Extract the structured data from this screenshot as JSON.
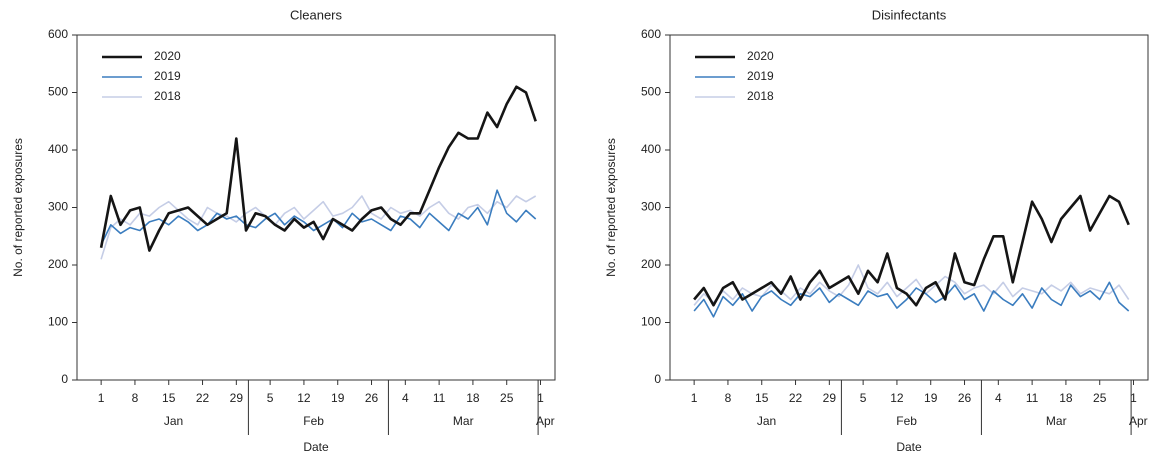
{
  "chart_data": [
    {
      "type": "line",
      "title": "Cleaners",
      "x_label": "Date",
      "y_label": "No. of reported exposures",
      "x": [
        1,
        3,
        5,
        7,
        9,
        11,
        13,
        15,
        17,
        19,
        21,
        23,
        25,
        27,
        29,
        31,
        33,
        35,
        37,
        39,
        41,
        43,
        45,
        47,
        49,
        51,
        53,
        55,
        57,
        59,
        61,
        63,
        65,
        67,
        69,
        71,
        73,
        75,
        77,
        79,
        81,
        83,
        85,
        87,
        89,
        91
      ],
      "xlim": [
        -4,
        95
      ],
      "ylim": [
        0,
        600
      ],
      "yticks": [
        0,
        100,
        200,
        300,
        400,
        500,
        600
      ],
      "xticks": [
        {
          "value": 1,
          "label": "1"
        },
        {
          "value": 8,
          "label": "8"
        },
        {
          "value": 15,
          "label": "15"
        },
        {
          "value": 22,
          "label": "22"
        },
        {
          "value": 29,
          "label": "29"
        },
        {
          "value": 36,
          "label": "5"
        },
        {
          "value": 43,
          "label": "12"
        },
        {
          "value": 50,
          "label": "19"
        },
        {
          "value": 57,
          "label": "26"
        },
        {
          "value": 64,
          "label": "4"
        },
        {
          "value": 71,
          "label": "11"
        },
        {
          "value": 78,
          "label": "18"
        },
        {
          "value": 85,
          "label": "25"
        },
        {
          "value": 92,
          "label": "1"
        }
      ],
      "month_labels": [
        {
          "value": 16,
          "label": "Jan"
        },
        {
          "value": 45,
          "label": "Feb"
        },
        {
          "value": 76,
          "label": "Mar"
        },
        {
          "value": 93,
          "label": "Apr"
        }
      ],
      "legend": "upper left",
      "series": [
        {
          "name": "2020",
          "color": "#151515",
          "values": [
            230,
            320,
            270,
            295,
            300,
            225,
            260,
            290,
            295,
            300,
            285,
            270,
            280,
            290,
            420,
            260,
            290,
            285,
            270,
            260,
            280,
            265,
            275,
            245,
            280,
            270,
            260,
            280,
            295,
            300,
            280,
            270,
            290,
            290,
            330,
            370,
            405,
            430,
            420,
            420,
            465,
            440,
            480,
            510,
            500,
            450
          ]
        },
        {
          "name": "2019",
          "color": "#3b7dbf",
          "values": [
            235,
            270,
            255,
            265,
            260,
            275,
            280,
            270,
            285,
            275,
            260,
            270,
            290,
            280,
            285,
            270,
            265,
            280,
            290,
            270,
            285,
            275,
            260,
            270,
            280,
            265,
            290,
            275,
            280,
            270,
            260,
            285,
            280,
            265,
            290,
            275,
            260,
            290,
            280,
            300,
            270,
            330,
            290,
            275,
            295,
            280
          ]
        },
        {
          "name": "2018",
          "color": "#c5cde6",
          "values": [
            210,
            265,
            280,
            270,
            290,
            285,
            300,
            310,
            295,
            280,
            270,
            300,
            290,
            285,
            275,
            290,
            300,
            285,
            270,
            290,
            300,
            280,
            295,
            310,
            285,
            290,
            300,
            320,
            290,
            280,
            300,
            290,
            295,
            285,
            300,
            310,
            290,
            280,
            300,
            305,
            290,
            310,
            300,
            320,
            310,
            320
          ]
        }
      ]
    },
    {
      "type": "line",
      "title": "Disinfectants",
      "x_label": "Date",
      "y_label": "No. of reported exposures",
      "x": [
        1,
        3,
        5,
        7,
        9,
        11,
        13,
        15,
        17,
        19,
        21,
        23,
        25,
        27,
        29,
        31,
        33,
        35,
        37,
        39,
        41,
        43,
        45,
        47,
        49,
        51,
        53,
        55,
        57,
        59,
        61,
        63,
        65,
        67,
        69,
        71,
        73,
        75,
        77,
        79,
        81,
        83,
        85,
        87,
        89,
        91
      ],
      "xlim": [
        -4,
        95
      ],
      "ylim": [
        0,
        600
      ],
      "yticks": [
        0,
        100,
        200,
        300,
        400,
        500,
        600
      ],
      "xticks": [
        {
          "value": 1,
          "label": "1"
        },
        {
          "value": 8,
          "label": "8"
        },
        {
          "value": 15,
          "label": "15"
        },
        {
          "value": 22,
          "label": "22"
        },
        {
          "value": 29,
          "label": "29"
        },
        {
          "value": 36,
          "label": "5"
        },
        {
          "value": 43,
          "label": "12"
        },
        {
          "value": 50,
          "label": "19"
        },
        {
          "value": 57,
          "label": "26"
        },
        {
          "value": 64,
          "label": "4"
        },
        {
          "value": 71,
          "label": "11"
        },
        {
          "value": 78,
          "label": "18"
        },
        {
          "value": 85,
          "label": "25"
        },
        {
          "value": 92,
          "label": "1"
        }
      ],
      "month_labels": [
        {
          "value": 16,
          "label": "Jan"
        },
        {
          "value": 45,
          "label": "Feb"
        },
        {
          "value": 76,
          "label": "Mar"
        },
        {
          "value": 93,
          "label": "Apr"
        }
      ],
      "legend": "upper left",
      "series": [
        {
          "name": "2020",
          "color": "#151515",
          "values": [
            140,
            160,
            130,
            160,
            170,
            140,
            150,
            160,
            170,
            150,
            180,
            140,
            170,
            190,
            160,
            170,
            180,
            150,
            190,
            170,
            220,
            160,
            150,
            130,
            160,
            170,
            140,
            220,
            170,
            165,
            210,
            250,
            250,
            170,
            240,
            310,
            280,
            240,
            280,
            300,
            320,
            260,
            290,
            320,
            310,
            270
          ]
        },
        {
          "name": "2019",
          "color": "#3b7dbf",
          "values": [
            120,
            140,
            110,
            145,
            130,
            150,
            120,
            145,
            155,
            140,
            130,
            150,
            145,
            160,
            135,
            150,
            140,
            130,
            155,
            145,
            150,
            125,
            140,
            160,
            150,
            135,
            145,
            165,
            140,
            150,
            120,
            155,
            140,
            130,
            150,
            125,
            160,
            140,
            130,
            165,
            145,
            155,
            140,
            170,
            135,
            120
          ]
        },
        {
          "name": "2018",
          "color": "#c5cde6",
          "values": [
            130,
            150,
            135,
            155,
            140,
            160,
            150,
            145,
            165,
            155,
            140,
            160,
            150,
            170,
            155,
            145,
            165,
            200,
            160,
            150,
            170,
            145,
            160,
            175,
            150,
            165,
            180,
            170,
            150,
            160,
            165,
            150,
            170,
            145,
            160,
            155,
            150,
            165,
            155,
            170,
            150,
            160,
            155,
            150,
            165,
            140
          ]
        }
      ]
    }
  ]
}
